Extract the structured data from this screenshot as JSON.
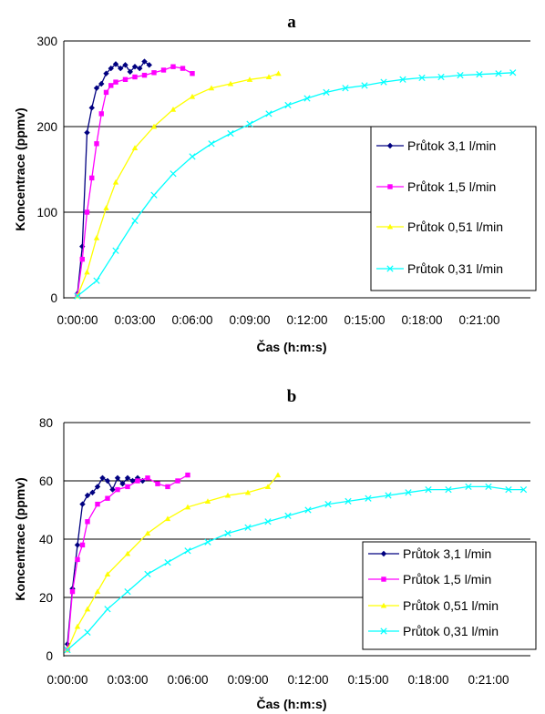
{
  "chart_data": [
    {
      "type": "line",
      "title": "a",
      "xlabel": "Čas (h:m:s)",
      "ylabel": "Koncentrace (ppmv)",
      "xlim": [
        "0:00:00",
        "0:24:00"
      ],
      "ylim": [
        0,
        300
      ],
      "x_ticks": [
        "0:00:00",
        "0:03:00",
        "0:06:00",
        "0:09:00",
        "0:12:00",
        "0:15:00",
        "0:18:00",
        "0:21:00"
      ],
      "y_ticks": [
        "0",
        "100",
        "200",
        "300"
      ],
      "grid": "horizontal",
      "legend_position": "right",
      "series": [
        {
          "name": "Průtok 3,1 l/min",
          "color": "#000080",
          "marker": "diamond",
          "x": [
            "0:00:00",
            "0:00:15",
            "0:00:30",
            "0:00:45",
            "0:01:00",
            "0:01:15",
            "0:01:30",
            "0:01:45",
            "0:02:00",
            "0:02:15",
            "0:02:30",
            "0:02:45",
            "0:03:00",
            "0:03:15",
            "0:03:30",
            "0:03:45"
          ],
          "y": [
            5,
            60,
            193,
            222,
            245,
            250,
            262,
            268,
            273,
            268,
            272,
            264,
            270,
            268,
            276,
            272
          ]
        },
        {
          "name": "Průtok 1,5 l/min",
          "color": "#ff00ff",
          "marker": "square",
          "x": [
            "0:00:00",
            "0:00:15",
            "0:00:30",
            "0:00:45",
            "0:01:00",
            "0:01:15",
            "0:01:30",
            "0:01:45",
            "0:02:00",
            "0:02:30",
            "0:03:00",
            "0:03:30",
            "0:04:00",
            "0:04:30",
            "0:05:00",
            "0:05:30",
            "0:06:00"
          ],
          "y": [
            3,
            45,
            100,
            140,
            180,
            215,
            240,
            248,
            252,
            255,
            258,
            260,
            263,
            266,
            270,
            268,
            262
          ]
        },
        {
          "name": "Průtok 0,51 l/min",
          "color": "#ffff00",
          "marker": "triangle",
          "x": [
            "0:00:00",
            "0:00:30",
            "0:01:00",
            "0:01:30",
            "0:02:00",
            "0:03:00",
            "0:04:00",
            "0:05:00",
            "0:06:00",
            "0:07:00",
            "0:08:00",
            "0:09:00",
            "0:10:00",
            "0:10:30"
          ],
          "y": [
            2,
            30,
            70,
            105,
            135,
            175,
            200,
            220,
            235,
            245,
            250,
            255,
            258,
            262
          ]
        },
        {
          "name": "Průtok 0,31 l/min",
          "color": "#00ffff",
          "marker": "x",
          "x": [
            "0:00:00",
            "0:01:00",
            "0:02:00",
            "0:03:00",
            "0:04:00",
            "0:05:00",
            "0:06:00",
            "0:07:00",
            "0:08:00",
            "0:09:00",
            "0:10:00",
            "0:11:00",
            "0:12:00",
            "0:13:00",
            "0:14:00",
            "0:15:00",
            "0:16:00",
            "0:17:00",
            "0:18:00",
            "0:19:00",
            "0:20:00",
            "0:21:00",
            "0:22:00",
            "0:22:45"
          ],
          "y": [
            2,
            20,
            55,
            90,
            120,
            145,
            165,
            180,
            192,
            203,
            215,
            225,
            233,
            240,
            245,
            248,
            252,
            255,
            257,
            258,
            260,
            261,
            262,
            263
          ]
        }
      ]
    },
    {
      "type": "line",
      "title": "b",
      "xlabel": "Čas (h:m:s)",
      "ylabel": "Koncentrace (ppmv)",
      "xlim": [
        "0:00:00",
        "0:24:00"
      ],
      "ylim": [
        0,
        80
      ],
      "x_ticks": [
        "0:00:00",
        "0:03:00",
        "0:06:00",
        "0:09:00",
        "0:12:00",
        "0:15:00",
        "0:18:00",
        "0:21:00"
      ],
      "y_ticks": [
        "0",
        "20",
        "40",
        "60",
        "80"
      ],
      "grid": "horizontal",
      "legend_position": "bottom-right",
      "series": [
        {
          "name": "Průtok 3,1 l/min",
          "color": "#000080",
          "marker": "diamond",
          "x": [
            "0:00:00",
            "0:00:15",
            "0:00:30",
            "0:00:45",
            "0:01:00",
            "0:01:15",
            "0:01:30",
            "0:01:45",
            "0:02:00",
            "0:02:15",
            "0:02:30",
            "0:02:45",
            "0:03:00",
            "0:03:15",
            "0:03:30",
            "0:03:45"
          ],
          "y": [
            4,
            23,
            38,
            52,
            55,
            56,
            58,
            61,
            60,
            57,
            61,
            59,
            61,
            60,
            61,
            60
          ]
        },
        {
          "name": "Průtok 1,5 l/min",
          "color": "#ff00ff",
          "marker": "square",
          "x": [
            "0:00:00",
            "0:00:15",
            "0:00:30",
            "0:00:45",
            "0:01:00",
            "0:01:30",
            "0:02:00",
            "0:02:30",
            "0:03:00",
            "0:03:30",
            "0:04:00",
            "0:04:30",
            "0:05:00",
            "0:05:30",
            "0:06:00"
          ],
          "y": [
            2,
            22,
            33,
            38,
            46,
            52,
            54,
            57,
            58,
            60,
            61,
            59,
            58,
            60,
            62
          ]
        },
        {
          "name": "Průtok 0,51 l/min",
          "color": "#ffff00",
          "marker": "triangle",
          "x": [
            "0:00:00",
            "0:00:30",
            "0:01:00",
            "0:01:30",
            "0:02:00",
            "0:03:00",
            "0:04:00",
            "0:05:00",
            "0:06:00",
            "0:07:00",
            "0:08:00",
            "0:09:00",
            "0:10:00",
            "0:10:30"
          ],
          "y": [
            2,
            10,
            16,
            22,
            28,
            35,
            42,
            47,
            51,
            53,
            55,
            56,
            58,
            62
          ]
        },
        {
          "name": "Průtok 0,31 l/min",
          "color": "#00ffff",
          "marker": "x",
          "x": [
            "0:00:00",
            "0:01:00",
            "0:02:00",
            "0:03:00",
            "0:04:00",
            "0:05:00",
            "0:06:00",
            "0:07:00",
            "0:08:00",
            "0:09:00",
            "0:10:00",
            "0:11:00",
            "0:12:00",
            "0:13:00",
            "0:14:00",
            "0:15:00",
            "0:16:00",
            "0:17:00",
            "0:18:00",
            "0:19:00",
            "0:20:00",
            "0:21:00",
            "0:22:00",
            "0:22:45"
          ],
          "y": [
            2,
            8,
            16,
            22,
            28,
            32,
            36,
            39,
            42,
            44,
            46,
            48,
            50,
            52,
            53,
            54,
            55,
            56,
            57,
            57,
            58,
            58,
            57,
            57
          ]
        }
      ]
    }
  ]
}
